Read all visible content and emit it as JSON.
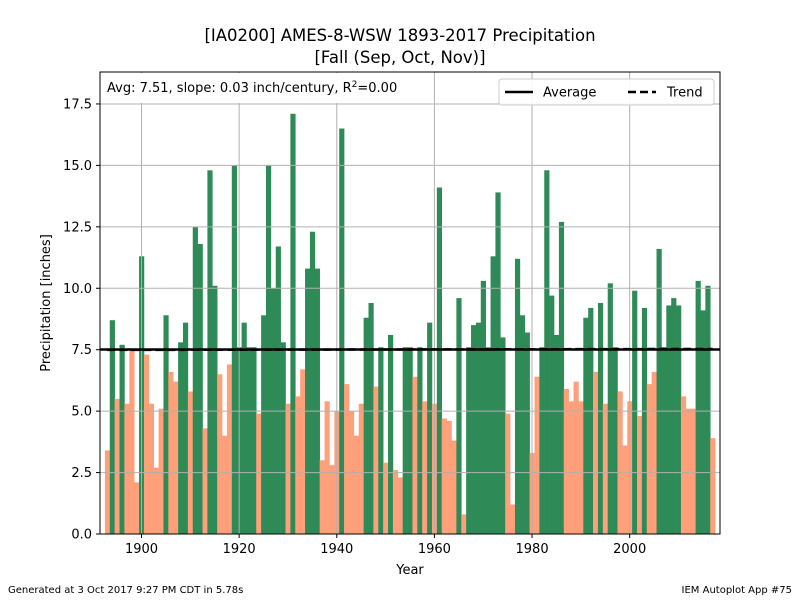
{
  "title_line1": "[IA0200] AMES-8-WSW 1893-2017 Precipitation",
  "title_line2": "[Fall (Sep, Oct, Nov)]",
  "footer_left": "Generated at 3 Oct 2017 9:27 PM CDT in 5.78s",
  "footer_right": "IEM Autoplot App #75",
  "colors": {
    "above": "#2e8b57",
    "below": "#ffa07a",
    "line": "#000000",
    "grid": "#b0b0b0"
  },
  "chart_data": {
    "type": "bar",
    "xlabel": "Year",
    "ylabel": "Precipitation [inches]",
    "xlim": [
      1891.5,
      2018.5
    ],
    "ylim": [
      0,
      18.8
    ],
    "xticks": [
      1900,
      1920,
      1940,
      1960,
      1980,
      2000
    ],
    "yticks": [
      0.0,
      2.5,
      5.0,
      7.5,
      10.0,
      12.5,
      15.0,
      17.5
    ],
    "grid": true,
    "average": 7.51,
    "trend_start": 7.49,
    "trend_end": 7.53,
    "annotation": "Avg: 7.51, slope: 0.03 inch/century, R",
    "annotation_sup": "2",
    "annotation_tail": "=0.00",
    "legend": [
      "Average",
      "Trend"
    ],
    "legend_loc": "upper right",
    "x": [
      1893,
      1894,
      1895,
      1896,
      1897,
      1898,
      1899,
      1900,
      1901,
      1902,
      1903,
      1904,
      1905,
      1906,
      1907,
      1908,
      1909,
      1910,
      1911,
      1912,
      1913,
      1914,
      1915,
      1916,
      1917,
      1918,
      1919,
      1920,
      1921,
      1922,
      1923,
      1924,
      1925,
      1926,
      1927,
      1928,
      1929,
      1930,
      1931,
      1932,
      1933,
      1934,
      1935,
      1936,
      1937,
      1938,
      1939,
      1940,
      1941,
      1942,
      1943,
      1944,
      1945,
      1946,
      1947,
      1948,
      1949,
      1950,
      1951,
      1952,
      1953,
      1954,
      1955,
      1956,
      1957,
      1958,
      1959,
      1960,
      1961,
      1962,
      1963,
      1964,
      1965,
      1966,
      1967,
      1968,
      1969,
      1970,
      1971,
      1972,
      1973,
      1974,
      1975,
      1976,
      1977,
      1978,
      1979,
      1980,
      1981,
      1982,
      1983,
      1984,
      1985,
      1986,
      1987,
      1988,
      1989,
      1990,
      1991,
      1992,
      1993,
      1994,
      1995,
      1996,
      1997,
      1998,
      1999,
      2000,
      2001,
      2002,
      2003,
      2004,
      2005,
      2006,
      2007,
      2008,
      2009,
      2010,
      2011,
      2012,
      2013,
      2014,
      2015,
      2016,
      2017
    ],
    "values": [
      3.4,
      8.7,
      5.5,
      7.7,
      5.3,
      7.5,
      2.1,
      11.3,
      7.3,
      5.3,
      2.7,
      5.1,
      8.9,
      6.6,
      6.2,
      7.8,
      8.6,
      5.8,
      12.5,
      11.8,
      4.3,
      14.8,
      10.1,
      6.5,
      4.0,
      6.9,
      15.0,
      7.6,
      8.6,
      7.6,
      7.6,
      4.9,
      8.9,
      15.0,
      10.0,
      11.7,
      7.8,
      5.3,
      17.1,
      5.6,
      6.7,
      10.8,
      12.3,
      10.8,
      3.0,
      5.4,
      2.8,
      5.0,
      16.5,
      6.1,
      5.0,
      4.0,
      5.3,
      8.8,
      9.4,
      6.0,
      7.6,
      2.9,
      8.1,
      2.6,
      2.3,
      7.6,
      7.6,
      6.4,
      7.6,
      5.4,
      8.6,
      5.3,
      14.1,
      4.7,
      4.6,
      3.8,
      9.6,
      0.8,
      7.6,
      8.5,
      8.6,
      10.3,
      7.6,
      11.3,
      13.9,
      8.0,
      4.9,
      1.2,
      11.2,
      8.9,
      8.2,
      3.3,
      6.4,
      7.6,
      14.8,
      9.7,
      8.1,
      12.7,
      5.9,
      5.4,
      6.2,
      5.4,
      8.8,
      9.2,
      6.6,
      9.4,
      5.3,
      10.2,
      7.6,
      5.8,
      3.6,
      5.4,
      9.9,
      4.8,
      9.2,
      6.1,
      6.6,
      11.6,
      7.6,
      9.3,
      9.6,
      9.3,
      5.6,
      5.1,
      5.1,
      10.3,
      9.1,
      10.1,
      3.9
    ]
  }
}
